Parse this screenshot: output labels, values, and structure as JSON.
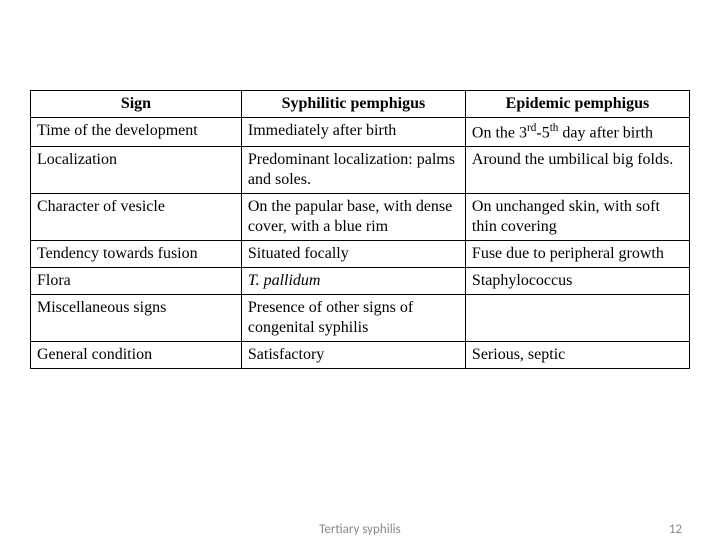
{
  "table": {
    "headers": [
      "Sign",
      "Syphilitic pemphigus",
      "Epidemic pemphigus"
    ],
    "rows": [
      {
        "sign": "Time of the development",
        "syph": "Immediately after birth",
        "epid_html": "On the 3<sup>rd</sup>-5<sup>th</sup> day after birth"
      },
      {
        "sign": "Localization",
        "syph": "Predominant localization: palms and soles.",
        "epid": "Around the umbilical big folds."
      },
      {
        "sign": "Character of vesicle",
        "syph": "On the papular base, with dense cover, with a blue rim",
        "epid": "On unchanged skin, with soft thin covering"
      },
      {
        "sign": "Tendency towards fusion",
        "syph": "Situated focally",
        "epid": "Fuse due to peripheral growth"
      },
      {
        "sign": "Flora",
        "syph_html": "<span class=\"italic\">T. pallidum</span>",
        "epid": "Staphylococcus"
      },
      {
        "sign": "Miscellaneous signs",
        "syph": "Presence of other signs of congenital syphilis",
        "epid": ""
      },
      {
        "sign": "General condition",
        "syph": "Satisfactory",
        "epid": "Serious, septic"
      }
    ]
  },
  "footer": {
    "title": "Tertiary syphilis",
    "page": "12"
  },
  "style": {
    "font_family_body": "Times New Roman",
    "font_family_footer": "Calibri",
    "body_fontsize_pt": 12,
    "footer_fontsize_pt": 10,
    "border_color": "#000000",
    "background_color": "#ffffff",
    "footer_color": "#888888",
    "col_widths_pct": [
      32,
      34,
      34
    ]
  }
}
